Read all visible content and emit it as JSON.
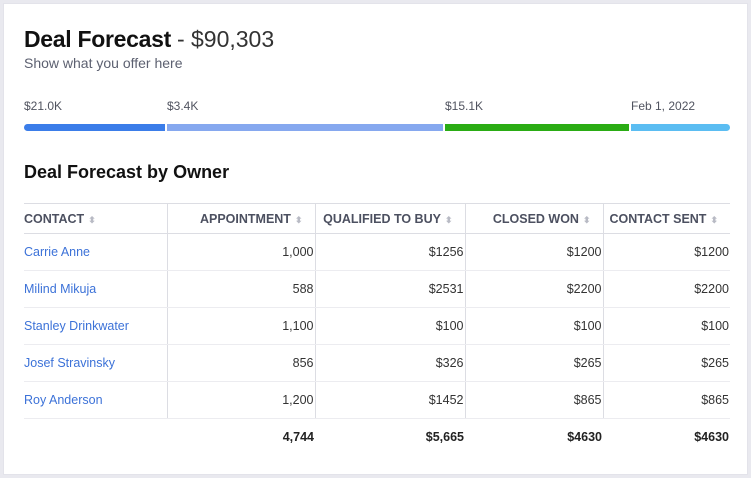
{
  "header": {
    "title": "Deal Forecast",
    "amount": "- $90,303",
    "subtitle": "Show what you offer here"
  },
  "progress": {
    "segments": [
      {
        "label": "$21.0K",
        "color": "#3b7de9"
      },
      {
        "label": "$3.4K",
        "color": "#86a8ef"
      },
      {
        "label": "$15.1K",
        "color": "#2aac14"
      },
      {
        "label": "Feb 1, 2022",
        "color": "#5bbdf2"
      }
    ]
  },
  "table": {
    "title": "Deal Forecast by Owner",
    "columns": [
      "CONTACT",
      "APPOINTMENT",
      "QUALIFIED TO BUY",
      "CLOSED WON",
      "CONTACT SENT"
    ],
    "rows": [
      [
        "Carrie Anne",
        "1,000",
        "$1256",
        "$1200",
        "$1200"
      ],
      [
        "Milind Mikuja",
        "588",
        "$2531",
        "$2200",
        "$2200"
      ],
      [
        "Stanley Drinkwater",
        "1,100",
        "$100",
        "$100",
        "$100"
      ],
      [
        "Josef Stravinsky",
        "856",
        "$326",
        "$265",
        "$265"
      ],
      [
        "Roy Anderson",
        "1,200",
        "$1452",
        "$865",
        "$865"
      ]
    ],
    "totals": [
      "",
      "4,744",
      "$5,665",
      "$4630",
      "$4630"
    ]
  }
}
